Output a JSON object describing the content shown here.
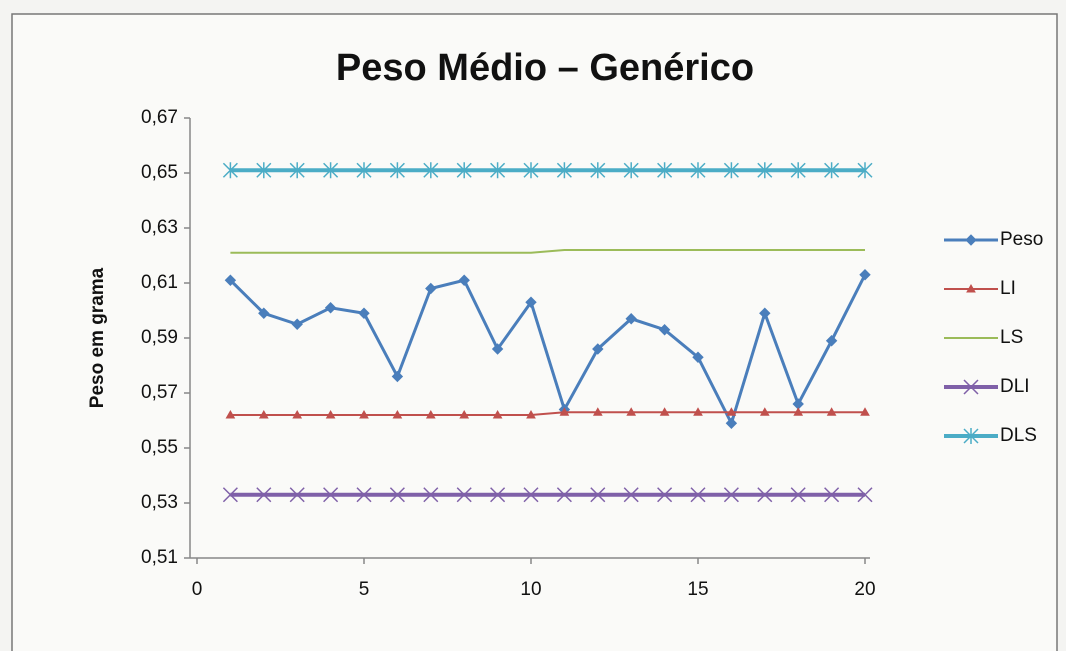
{
  "chart_data": {
    "type": "line",
    "title": "Peso Médio –  Genérico",
    "y_label": "Peso em grama",
    "x": [
      1,
      2,
      3,
      4,
      5,
      6,
      7,
      8,
      9,
      10,
      11,
      12,
      13,
      14,
      15,
      16,
      17,
      18,
      19,
      20
    ],
    "xlim": [
      0,
      20
    ],
    "xticks": [
      0,
      5,
      10,
      15,
      20
    ],
    "ylim": [
      0.51,
      0.67
    ],
    "yticks": [
      {
        "value": 0.51,
        "label": "0,51"
      },
      {
        "value": 0.53,
        "label": "0,53"
      },
      {
        "value": 0.55,
        "label": "0,55"
      },
      {
        "value": 0.57,
        "label": "0,57"
      },
      {
        "value": 0.59,
        "label": "0,59"
      },
      {
        "value": 0.61,
        "label": "0,61"
      },
      {
        "value": 0.63,
        "label": "0,63"
      },
      {
        "value": 0.65,
        "label": "0,65"
      },
      {
        "value": 0.67,
        "label": "0,67"
      }
    ],
    "grid": false,
    "legend": "right",
    "series": [
      {
        "name": "Peso",
        "color": "#4a7ebb",
        "marker": "diamond",
        "values": [
          0.611,
          0.599,
          0.595,
          0.601,
          0.599,
          0.576,
          0.608,
          0.611,
          0.586,
          0.603,
          0.564,
          0.586,
          0.597,
          0.593,
          0.583,
          0.559,
          0.599,
          0.566,
          0.589,
          0.613
        ]
      },
      {
        "name": "LI",
        "color": "#c0504d",
        "marker": "triangle",
        "values": [
          0.562,
          0.562,
          0.562,
          0.562,
          0.562,
          0.562,
          0.562,
          0.562,
          0.562,
          0.562,
          0.563,
          0.563,
          0.563,
          0.563,
          0.563,
          0.563,
          0.563,
          0.563,
          0.563,
          0.563
        ]
      },
      {
        "name": "LS",
        "color": "#9bbb59",
        "marker": "none",
        "values": [
          0.621,
          0.621,
          0.621,
          0.621,
          0.621,
          0.621,
          0.621,
          0.621,
          0.621,
          0.621,
          0.622,
          0.622,
          0.622,
          0.622,
          0.622,
          0.622,
          0.622,
          0.622,
          0.622,
          0.622
        ]
      },
      {
        "name": "DLI",
        "color": "#7f60a8",
        "marker": "x",
        "values": [
          0.533,
          0.533,
          0.533,
          0.533,
          0.533,
          0.533,
          0.533,
          0.533,
          0.533,
          0.533,
          0.533,
          0.533,
          0.533,
          0.533,
          0.533,
          0.533,
          0.533,
          0.533,
          0.533,
          0.533
        ]
      },
      {
        "name": "DLS",
        "color": "#4bacc6",
        "marker": "star",
        "values": [
          0.651,
          0.651,
          0.651,
          0.651,
          0.651,
          0.651,
          0.651,
          0.651,
          0.651,
          0.651,
          0.651,
          0.651,
          0.651,
          0.651,
          0.651,
          0.651,
          0.651,
          0.651,
          0.651,
          0.651
        ]
      }
    ]
  }
}
